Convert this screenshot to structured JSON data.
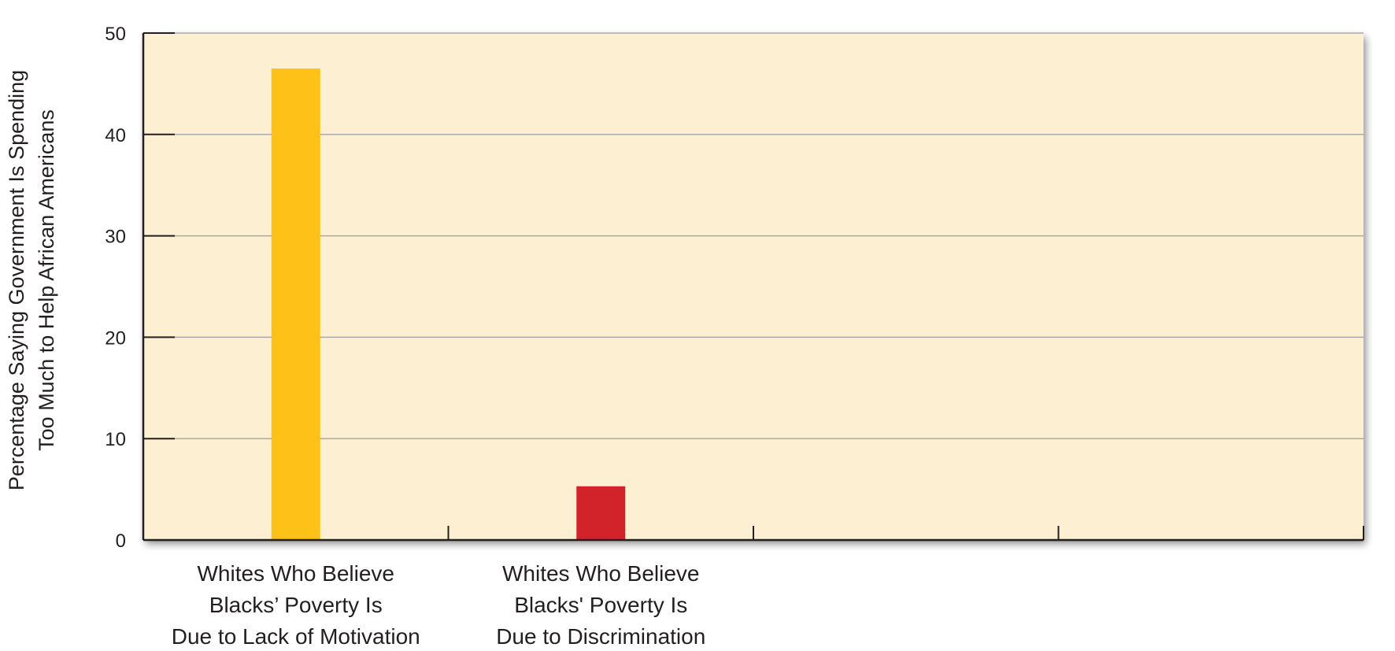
{
  "chart_data": {
    "type": "bar",
    "title": "",
    "xlabel": "",
    "ylabel_lines": [
      "Percentage Saying Government Is Spending",
      "Too Much to Help African Americans"
    ],
    "categories": [
      [
        "Whites Who Believe",
        "Blacks’ Poverty Is",
        "Due to Lack of Motivation"
      ],
      [
        "Whites Who Believe",
        "Blacks' Poverty Is",
        "Due to Discrimination"
      ]
    ],
    "values": [
      46.5,
      5.3
    ],
    "bar_colors": [
      "#fdc117",
      "#d2232a"
    ],
    "ylim": [
      0,
      50
    ],
    "yticks": [
      0,
      10,
      20,
      30,
      40,
      50
    ],
    "ytick_labels": [
      "0",
      "10",
      "20",
      "30",
      "40",
      "50"
    ],
    "x_slots": 4,
    "grid": true,
    "legend": "none",
    "colors": {
      "plot_background": "#fdf0d2",
      "gridline": "#a7a9ac",
      "axis": "#231f20"
    }
  }
}
